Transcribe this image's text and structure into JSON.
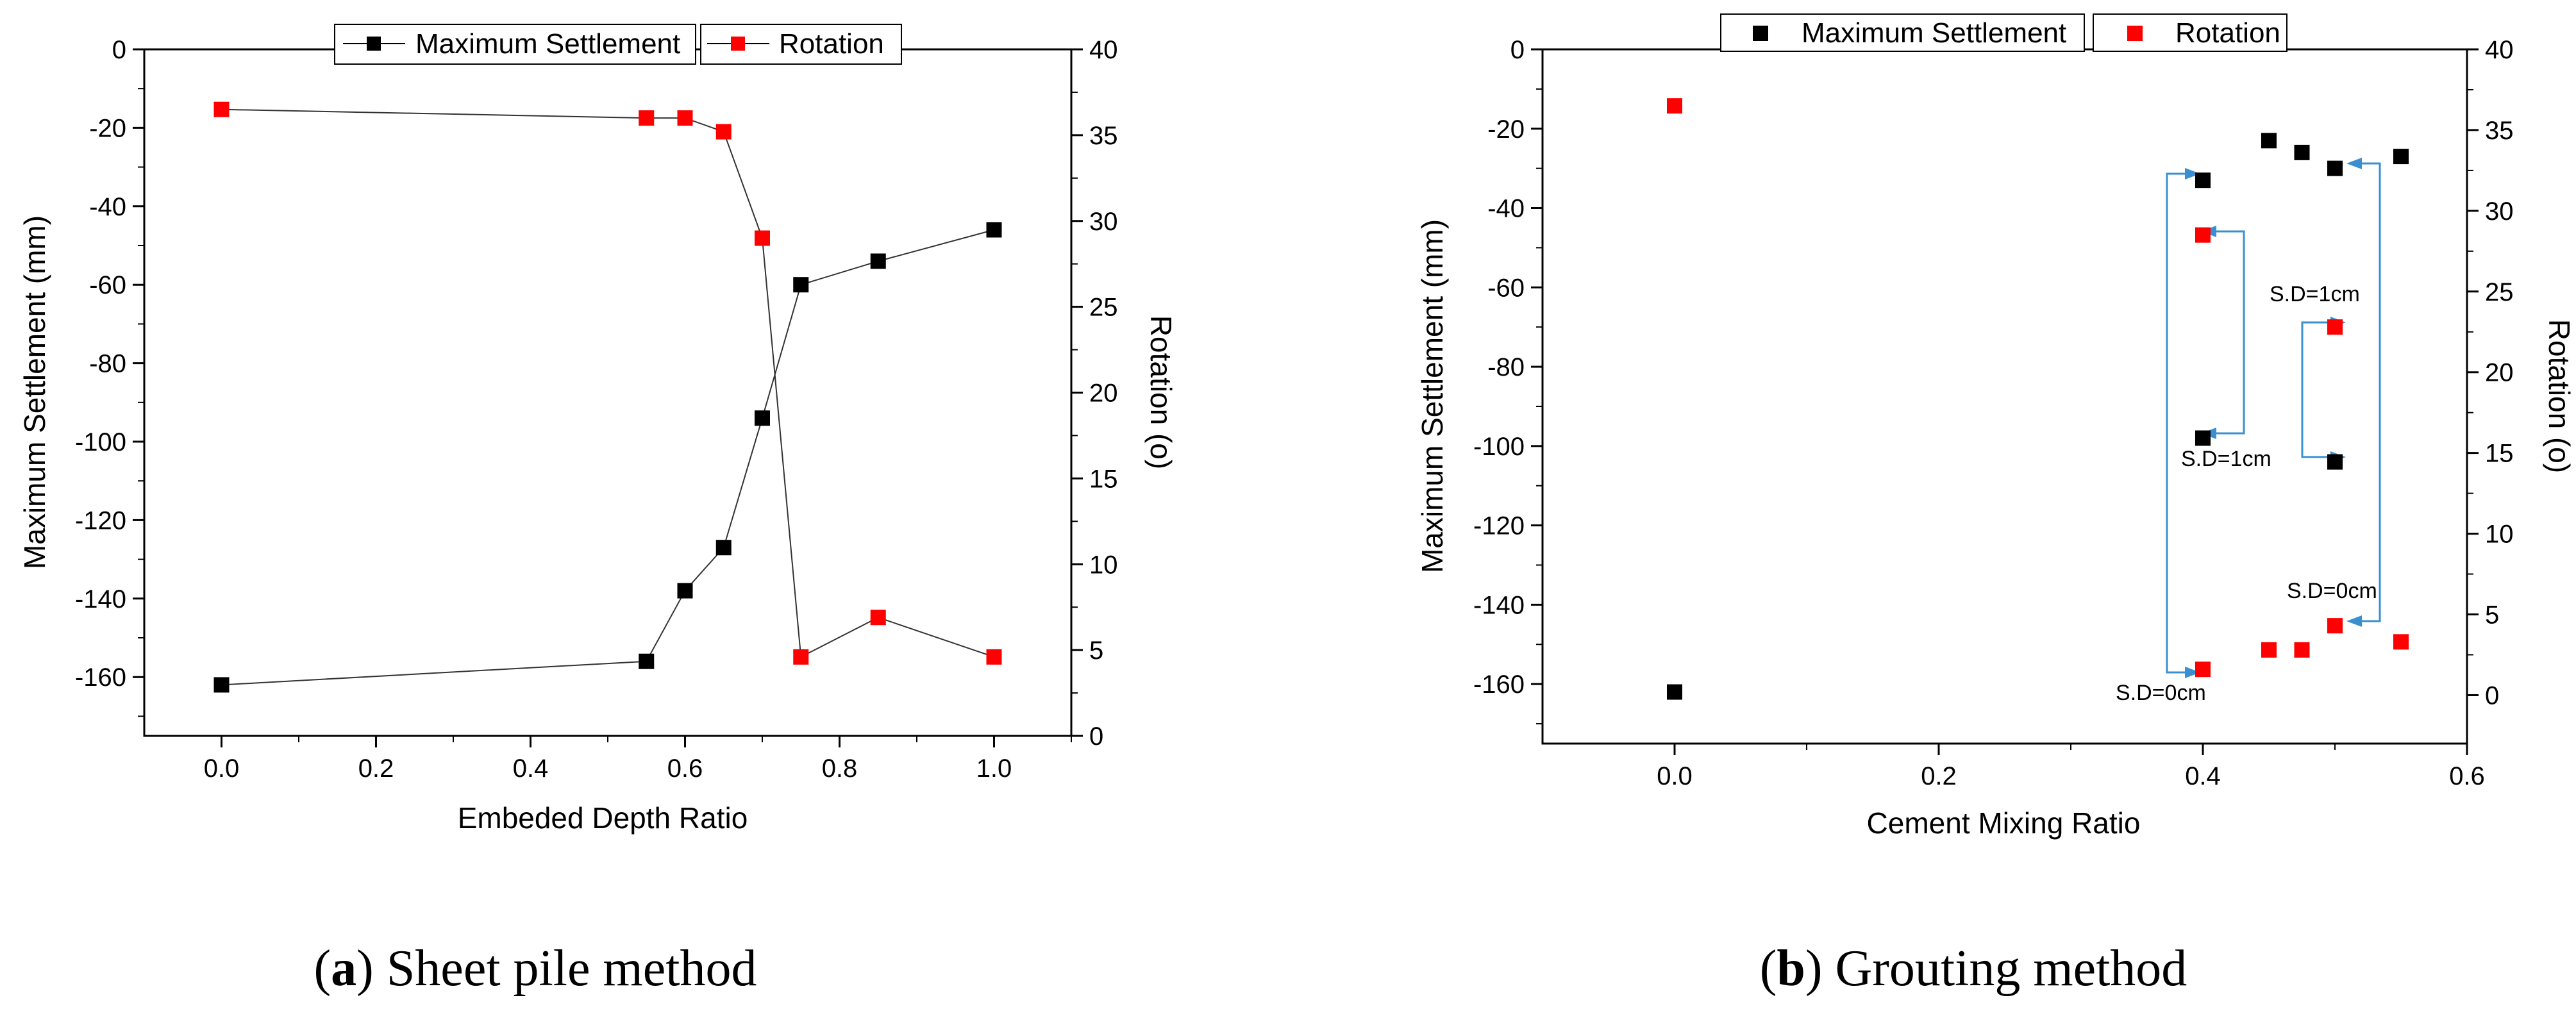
{
  "chart_data": [
    {
      "type": "line",
      "caption": {
        "letter": "a",
        "text": "Sheet pile method"
      },
      "xlabel": "Embeded Depth Ratio",
      "ylabel": "Maximum Settlement (mm)",
      "y2label": "Rotation (o)",
      "xlim": [
        -0.1,
        1.1
      ],
      "ylim": [
        -175,
        0
      ],
      "y2lim": [
        0,
        40
      ],
      "xticks": [
        "0.0",
        "0.2",
        "0.4",
        "0.6",
        "0.8",
        "1.0"
      ],
      "yticks": [
        "0",
        "-20",
        "-40",
        "-60",
        "-80",
        "-100",
        "-120",
        "-140",
        "-160"
      ],
      "y2ticks": [
        "0",
        "5",
        "10",
        "15",
        "20",
        "25",
        "30",
        "35",
        "40"
      ],
      "series": [
        {
          "name": "Maximum Settlement",
          "axis": "left",
          "color": "#000000",
          "x": [
            0,
            0.55,
            0.6,
            0.65,
            0.7,
            0.75,
            0.85,
            1.0
          ],
          "y": [
            -162,
            -156,
            -138,
            -127,
            -94,
            -60,
            -54,
            -46
          ]
        },
        {
          "name": "Rotation",
          "axis": "right",
          "color": "#ff0000",
          "x": [
            0,
            0.55,
            0.6,
            0.65,
            0.7,
            0.75,
            0.85,
            1.0
          ],
          "y": [
            36.5,
            36,
            36,
            35.2,
            29,
            4.6,
            6.9,
            4.6
          ]
        }
      ]
    },
    {
      "type": "scatter",
      "caption": {
        "letter": "b",
        "text": "Grouting method"
      },
      "xlabel": "Cement Mixing Ratio",
      "ylabel": "Maximum Settlement (mm)",
      "y2label": "Rotation (o)",
      "xlim": [
        -0.1,
        0.6
      ],
      "ylim": [
        -175,
        0
      ],
      "y2lim": [
        -3,
        40
      ],
      "xticks": [
        "0.0",
        "0.2",
        "0.4",
        "0.6"
      ],
      "yticks": [
        "0",
        "-20",
        "-40",
        "-60",
        "-80",
        "-100",
        "-120",
        "-140",
        "-160"
      ],
      "y2ticks": [
        "0",
        "5",
        "10",
        "15",
        "20",
        "25",
        "30",
        "35",
        "40"
      ],
      "series": [
        {
          "name": "Maximum Settlement",
          "axis": "left",
          "color": "#000000",
          "x": [
            0,
            0.4,
            0.4,
            0.45,
            0.475,
            0.5,
            0.5,
            0.55
          ],
          "y": [
            -162,
            -33,
            -98,
            -23,
            -26,
            -30,
            -104,
            -27
          ]
        },
        {
          "name": "Rotation",
          "axis": "right",
          "color": "#ff0000",
          "x": [
            0,
            0.4,
            0.4,
            0.45,
            0.475,
            0.5,
            0.5,
            0.55
          ],
          "y": [
            36.5,
            28.5,
            1.6,
            2.8,
            2.8,
            22.8,
            4.3,
            3.3
          ]
        }
      ],
      "annotations": [
        "S.D=1cm",
        "S.D=0cm",
        "S.D=1cm",
        "S.D=0cm"
      ]
    }
  ]
}
